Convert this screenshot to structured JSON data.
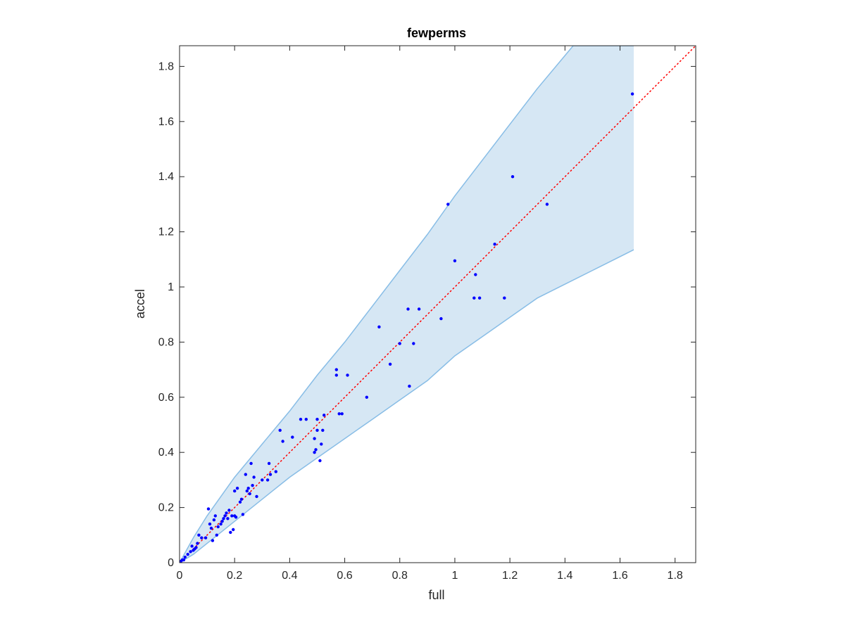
{
  "chart_data": {
    "type": "scatter",
    "title": "fewperms",
    "xlabel": "full",
    "ylabel": "accel",
    "xlim": [
      0,
      1.875
    ],
    "ylim": [
      0,
      1.875
    ],
    "xticks": [
      0,
      0.2,
      0.4,
      0.6,
      0.8,
      1,
      1.2,
      1.4,
      1.6,
      1.8
    ],
    "yticks": [
      0,
      0.2,
      0.4,
      0.6,
      0.8,
      1,
      1.2,
      1.4,
      1.6,
      1.8
    ],
    "xtick_labels": [
      "0",
      "0.2",
      "0.4",
      "0.6",
      "0.8",
      "1",
      "1.2",
      "1.4",
      "1.6",
      "1.8"
    ],
    "ytick_labels": [
      "0",
      "0.2",
      "0.4",
      "0.6",
      "0.8",
      "1",
      "1.2",
      "1.4",
      "1.6",
      "1.8"
    ],
    "grid": false,
    "colors": {
      "points": "#0000ff",
      "band_fill": "#d6e7f4",
      "band_edge": "#88bde6",
      "reference": "#ff0000",
      "axes": "#262626"
    },
    "reference_line": {
      "x": [
        0,
        1.875
      ],
      "y": [
        0,
        1.875
      ],
      "style": "dotted"
    },
    "band": {
      "upper": {
        "x": [
          0,
          0.05,
          0.1,
          0.2,
          0.3,
          0.4,
          0.5,
          0.6,
          0.7,
          0.8,
          0.9,
          1.0,
          1.1,
          1.2,
          1.3,
          1.43,
          1.65
        ],
        "y": [
          0,
          0.09,
          0.17,
          0.31,
          0.43,
          0.55,
          0.68,
          0.8,
          0.93,
          1.06,
          1.19,
          1.33,
          1.46,
          1.59,
          1.72,
          1.875,
          1.875
        ]
      },
      "lower": {
        "x": [
          0,
          0.05,
          0.1,
          0.2,
          0.3,
          0.4,
          0.5,
          0.6,
          0.7,
          0.8,
          0.9,
          1.0,
          1.1,
          1.2,
          1.3,
          1.4,
          1.5,
          1.65
        ],
        "y": [
          0,
          0.03,
          0.07,
          0.15,
          0.23,
          0.31,
          0.38,
          0.45,
          0.52,
          0.59,
          0.66,
          0.75,
          0.82,
          0.89,
          0.96,
          1.01,
          1.06,
          1.135
        ]
      }
    },
    "points": {
      "x": [
        0.0,
        0.005,
        0.01,
        0.015,
        0.02,
        0.03,
        0.04,
        0.045,
        0.05,
        0.055,
        0.06,
        0.065,
        0.07,
        0.08,
        0.095,
        0.105,
        0.11,
        0.115,
        0.12,
        0.125,
        0.13,
        0.135,
        0.14,
        0.15,
        0.155,
        0.16,
        0.165,
        0.17,
        0.175,
        0.18,
        0.185,
        0.19,
        0.195,
        0.2,
        0.2,
        0.205,
        0.21,
        0.22,
        0.225,
        0.23,
        0.24,
        0.245,
        0.25,
        0.255,
        0.26,
        0.265,
        0.27,
        0.28,
        0.3,
        0.32,
        0.325,
        0.33,
        0.35,
        0.365,
        0.375,
        0.41,
        0.44,
        0.46,
        0.49,
        0.49,
        0.495,
        0.5,
        0.5,
        0.51,
        0.515,
        0.52,
        0.525,
        0.57,
        0.57,
        0.58,
        0.59,
        0.61,
        0.68,
        0.725,
        0.765,
        0.8,
        0.83,
        0.835,
        0.85,
        0.87,
        0.95,
        0.975,
        1.0,
        1.07,
        1.075,
        1.09,
        1.145,
        1.18,
        1.21,
        1.335,
        1.645
      ],
      "y": [
        0.0,
        0.005,
        0.01,
        0.01,
        0.02,
        0.03,
        0.04,
        0.06,
        0.045,
        0.05,
        0.055,
        0.07,
        0.1,
        0.09,
        0.09,
        0.195,
        0.14,
        0.125,
        0.08,
        0.155,
        0.17,
        0.1,
        0.13,
        0.14,
        0.15,
        0.16,
        0.17,
        0.18,
        0.16,
        0.19,
        0.11,
        0.17,
        0.12,
        0.17,
        0.26,
        0.165,
        0.27,
        0.22,
        0.23,
        0.175,
        0.32,
        0.26,
        0.27,
        0.25,
        0.36,
        0.28,
        0.31,
        0.24,
        0.3,
        0.3,
        0.36,
        0.32,
        0.33,
        0.48,
        0.44,
        0.455,
        0.52,
        0.52,
        0.4,
        0.45,
        0.41,
        0.48,
        0.52,
        0.37,
        0.43,
        0.48,
        0.535,
        0.68,
        0.7,
        0.54,
        0.54,
        0.68,
        0.6,
        0.855,
        0.72,
        0.795,
        0.92,
        0.64,
        0.795,
        0.92,
        0.885,
        1.3,
        1.095,
        0.96,
        1.045,
        0.96,
        1.155,
        0.96,
        1.4,
        1.3,
        1.7
      ]
    }
  }
}
